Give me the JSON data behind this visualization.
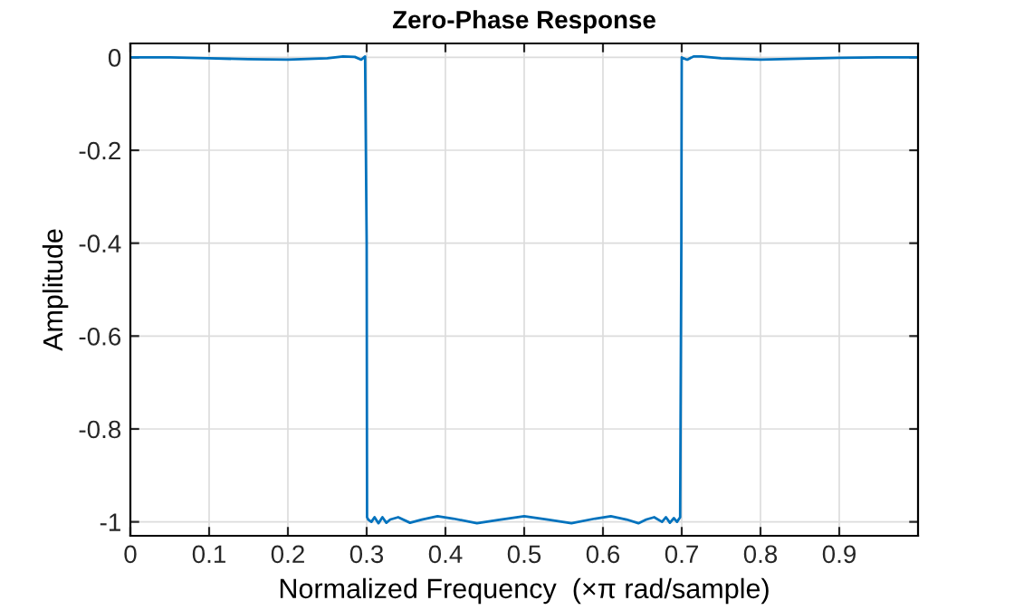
{
  "chart_data": {
    "type": "line",
    "title": "Zero-Phase Response",
    "xlabel": "Normalized Frequency  (×π rad/sample)",
    "ylabel": "Amplitude",
    "series": [
      {
        "color": "#0072bd",
        "x": [
          0,
          0.05,
          0.1,
          0.15,
          0.2,
          0.25,
          0.27,
          0.285,
          0.293,
          0.298,
          0.3,
          0.3005,
          0.302,
          0.306,
          0.31,
          0.315,
          0.32,
          0.325,
          0.33,
          0.34,
          0.355,
          0.37,
          0.39,
          0.41,
          0.44,
          0.47,
          0.5,
          0.53,
          0.56,
          0.59,
          0.61,
          0.63,
          0.645,
          0.655,
          0.665,
          0.675,
          0.68,
          0.685,
          0.69,
          0.694,
          0.698,
          0.6995,
          0.7,
          0.702,
          0.707,
          0.715,
          0.725,
          0.75,
          0.8,
          0.85,
          0.9,
          0.95,
          1.0
        ],
        "values": [
          0,
          0.0,
          -0.002,
          -0.004,
          -0.005,
          -0.002,
          0.002,
          0.001,
          -0.005,
          0.002,
          -0.4,
          -0.99,
          -0.995,
          -1.0,
          -0.99,
          -1.003,
          -0.99,
          -1.002,
          -0.995,
          -0.99,
          -1.002,
          -0.995,
          -0.988,
          -0.993,
          -1.003,
          -0.995,
          -0.988,
          -0.995,
          -1.003,
          -0.993,
          -0.988,
          -0.995,
          -1.003,
          -0.995,
          -0.99,
          -1.0,
          -0.99,
          -1.002,
          -0.992,
          -1.0,
          -0.99,
          -0.4,
          0.0,
          -0.002,
          -0.005,
          0.002,
          0.002,
          -0.002,
          -0.005,
          -0.003,
          -0.001,
          0.0,
          0
        ]
      }
    ],
    "xlim": [
      0,
      1.0
    ],
    "ylim": [
      -1.03,
      0.03
    ],
    "xticks": [
      0,
      0.1,
      0.2,
      0.3,
      0.4,
      0.5,
      0.6,
      0.7,
      0.8,
      0.9
    ],
    "yticks": [
      -1,
      -0.8,
      -0.6,
      -0.4,
      -0.2,
      0
    ],
    "grid": true,
    "legend": false
  }
}
